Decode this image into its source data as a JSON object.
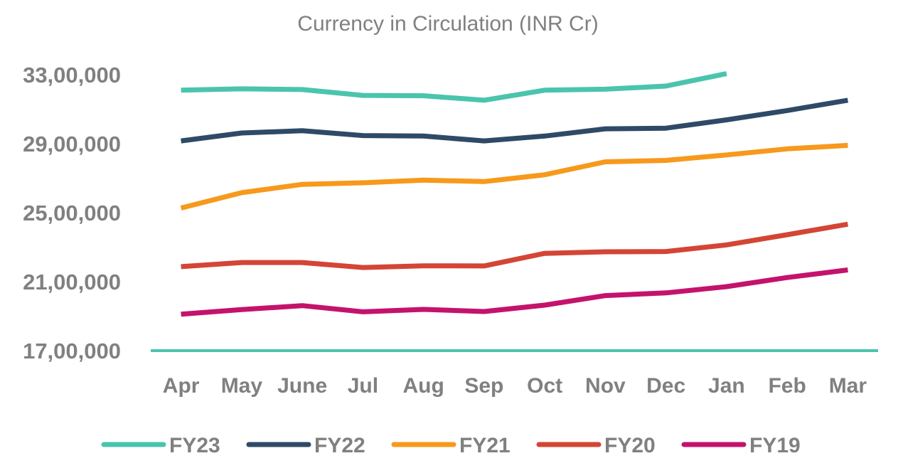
{
  "chart_data": {
    "type": "line",
    "title": "Currency in Circulation (INR Cr)",
    "xlabel": "",
    "ylabel": "",
    "categories": [
      "Apr",
      "May",
      "June",
      "Jul",
      "Aug",
      "Sep",
      "Oct",
      "Nov",
      "Dec",
      "Jan",
      "Feb",
      "Mar"
    ],
    "ylim": [
      1700000,
      3300000
    ],
    "yticks": [
      1700000,
      2100000,
      2500000,
      2900000,
      3300000
    ],
    "ytick_labels": [
      "17,00,000",
      "21,00,000",
      "25,00,000",
      "29,00,000",
      "33,00,000"
    ],
    "grid": false,
    "legend_position": "bottom",
    "series": [
      {
        "name": "FY23",
        "color": "#4BC4AE",
        "values": [
          3210000,
          3218000,
          3214000,
          3180000,
          3178000,
          3152000,
          3210000,
          3216000,
          3234000,
          3306000,
          null,
          null
        ]
      },
      {
        "name": "FY22",
        "color": "#2E4A66",
        "values": [
          2916000,
          2962000,
          2975000,
          2947000,
          2944000,
          2916000,
          2944000,
          2986000,
          2990000,
          3038000,
          3092000,
          3152000
        ]
      },
      {
        "name": "FY21",
        "color": "#F7991C",
        "values": [
          2527000,
          2616000,
          2664000,
          2673000,
          2689000,
          2680000,
          2720000,
          2795000,
          2803000,
          2835000,
          2870000,
          2890000
        ]
      },
      {
        "name": "FY20",
        "color": "#D44535",
        "values": [
          2187000,
          2211000,
          2211000,
          2182000,
          2192000,
          2191000,
          2264000,
          2273000,
          2275000,
          2313000,
          2372000,
          2433000
        ]
      },
      {
        "name": "FY19",
        "color": "#C4136C",
        "values": [
          1911000,
          1938000,
          1961000,
          1925000,
          1939000,
          1927000,
          1964000,
          2019000,
          2035000,
          2071000,
          2124000,
          2168000
        ]
      }
    ]
  }
}
